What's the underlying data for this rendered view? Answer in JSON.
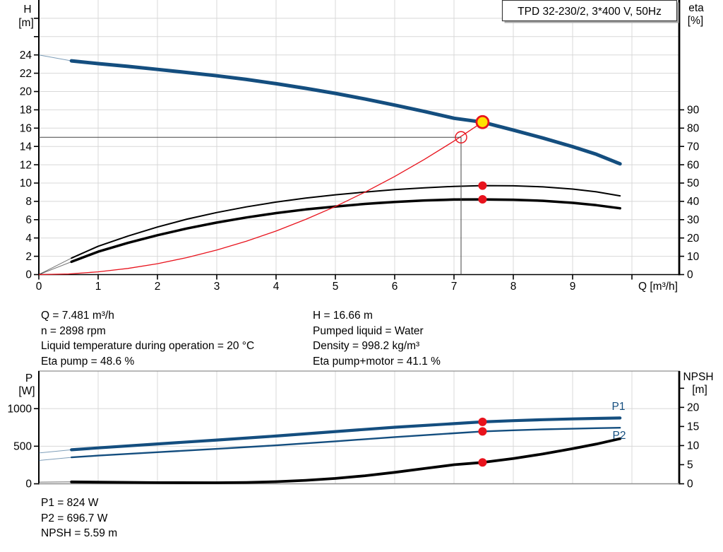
{
  "colors": {
    "curve_blue": "#144e7f",
    "red": "#e8131d",
    "yellow": "#ffe100",
    "grid": "#d8d8d8",
    "axis": "#000000",
    "frame_gray": "#8f8f8f",
    "crosshair": "#444444"
  },
  "info_top": {
    "left": [
      "Q = 7.481 m³/h",
      "n = 2898 rpm",
      "Liquid temperature during operation = 20 °C",
      "Eta pump = 48.6 %"
    ],
    "right": [
      "H = 16.66 m",
      "Pumped liquid = Water",
      "Density = 998.2 kg/m³",
      "Eta pump+motor = 41.1 %"
    ]
  },
  "info_bottom": [
    "P1 = 824 W",
    "P2 = 696.7 W",
    "NPSH = 5.59 m"
  ],
  "chart_data": [
    {
      "id": "qh-eta",
      "type": "line",
      "title": "TPD 32-230/2, 3*400 V, 50Hz",
      "x_axis": {
        "label": "Q [m³/h]",
        "min": 0,
        "max": 10.8,
        "ticks": [
          0,
          1,
          2,
          3,
          4,
          5,
          6,
          7,
          8,
          9,
          10
        ],
        "tick_labels": [
          "0",
          "1",
          "2",
          "3",
          "4",
          "5",
          "6",
          "7",
          "8",
          "9",
          ""
        ]
      },
      "left_axis": {
        "label": "H",
        "unit": "[m]",
        "min": 0,
        "max": 30,
        "ticks": [
          0,
          2,
          4,
          6,
          8,
          10,
          12,
          14,
          16,
          18,
          20,
          22,
          24,
          26,
          28
        ],
        "max_labeled": 24
      },
      "right_axis": {
        "label": "eta",
        "unit": "[%]",
        "min": 0,
        "max": 150,
        "ticks": [
          0,
          10,
          20,
          30,
          40,
          50,
          60,
          70,
          80,
          90
        ],
        "max_labeled": 90
      },
      "grid": true,
      "series": [
        {
          "name": "QH-curve",
          "axis": "left",
          "width": 5,
          "colorKey": "curve_blue",
          "thin_until": 0.55,
          "points": [
            [
              0,
              24
            ],
            [
              0.55,
              23.35
            ],
            [
              1,
              23.05
            ],
            [
              1.5,
              22.75
            ],
            [
              2,
              22.42
            ],
            [
              2.5,
              22.08
            ],
            [
              3,
              21.72
            ],
            [
              3.5,
              21.32
            ],
            [
              4,
              20.86
            ],
            [
              4.5,
              20.35
            ],
            [
              5,
              19.8
            ],
            [
              5.5,
              19.18
            ],
            [
              6,
              18.52
            ],
            [
              6.5,
              17.82
            ],
            [
              7,
              17.08
            ],
            [
              7.481,
              16.66
            ],
            [
              8,
              15.78
            ],
            [
              8.5,
              14.92
            ],
            [
              9,
              13.98
            ],
            [
              9.4,
              13.14
            ],
            [
              9.8,
              12.1
            ]
          ]
        },
        {
          "name": "eta-pump",
          "axis": "right",
          "width": 2,
          "colorKey": "axis",
          "thin_until": 0.55,
          "points": [
            [
              0,
              0
            ],
            [
              0.55,
              9
            ],
            [
              1,
              15.5
            ],
            [
              1.5,
              21
            ],
            [
              2,
              26
            ],
            [
              2.5,
              30.3
            ],
            [
              3,
              33.9
            ],
            [
              3.5,
              37
            ],
            [
              4,
              39.6
            ],
            [
              4.5,
              41.8
            ],
            [
              5,
              43.6
            ],
            [
              5.5,
              45.1
            ],
            [
              6,
              46.4
            ],
            [
              6.5,
              47.4
            ],
            [
              7,
              48.2
            ],
            [
              7.481,
              48.6
            ],
            [
              8,
              48.5
            ],
            [
              8.5,
              47.9
            ],
            [
              9,
              46.7
            ],
            [
              9.4,
              45.2
            ],
            [
              9.8,
              43
            ]
          ]
        },
        {
          "name": "eta-pump-motor",
          "axis": "right",
          "width": 3.5,
          "colorKey": "axis",
          "thin_until": 0.55,
          "points": [
            [
              0,
              0
            ],
            [
              0.55,
              7
            ],
            [
              1,
              12.5
            ],
            [
              1.5,
              17.3
            ],
            [
              2,
              21.5
            ],
            [
              2.5,
              25.2
            ],
            [
              3,
              28.4
            ],
            [
              3.5,
              31.2
            ],
            [
              4,
              33.6
            ],
            [
              4.5,
              35.6
            ],
            [
              5,
              37.2
            ],
            [
              5.5,
              38.6
            ],
            [
              6,
              39.7
            ],
            [
              6.5,
              40.5
            ],
            [
              7,
              41
            ],
            [
              7.481,
              41.1
            ],
            [
              8,
              40.9
            ],
            [
              8.5,
              40.3
            ],
            [
              9,
              39.2
            ],
            [
              9.4,
              37.9
            ],
            [
              9.8,
              36.2
            ]
          ]
        },
        {
          "name": "system-curve",
          "axis": "left",
          "width": 1.3,
          "colorKey": "red",
          "thin_until": 0,
          "points": [
            [
              0,
              0
            ],
            [
              0.5,
              0.07
            ],
            [
              1,
              0.3
            ],
            [
              1.5,
              0.67
            ],
            [
              2,
              1.19
            ],
            [
              2.5,
              1.86
            ],
            [
              3,
              2.68
            ],
            [
              3.5,
              3.65
            ],
            [
              4,
              4.76
            ],
            [
              4.5,
              6.03
            ],
            [
              5,
              7.44
            ],
            [
              5.5,
              9.01
            ],
            [
              6,
              10.72
            ],
            [
              6.5,
              12.58
            ],
            [
              7,
              14.59
            ],
            [
              7.481,
              16.66
            ]
          ]
        }
      ],
      "markers": [
        {
          "kind": "crosshair",
          "x": 7.119,
          "value": 15,
          "axis": "left"
        },
        {
          "kind": "open-circle",
          "x": 7.119,
          "value": 15,
          "axis": "left",
          "r": 8
        },
        {
          "kind": "dot",
          "x": 7.481,
          "value": 48.6,
          "axis": "right",
          "r": 6
        },
        {
          "kind": "dot",
          "x": 7.481,
          "value": 41.1,
          "axis": "right",
          "r": 6
        },
        {
          "kind": "duty-point",
          "x": 7.481,
          "value": 16.66,
          "axis": "left",
          "r": 8.5
        }
      ]
    },
    {
      "id": "power-npsh",
      "type": "line",
      "x_axis": {
        "label": "",
        "min": 0,
        "max": 10.8,
        "ticks": [
          0,
          1,
          2,
          3,
          4,
          5,
          6,
          7,
          8,
          9,
          10
        ],
        "tick_labels": [
          "",
          "",
          "",
          "",
          "",
          "",
          "",
          "",
          "",
          "",
          ""
        ]
      },
      "left_axis": {
        "label": "P",
        "unit": "[W]",
        "min": 0,
        "max": 1500,
        "ticks": [
          0,
          500,
          1000
        ],
        "max_labeled": 1000
      },
      "right_axis": {
        "label": "NPSH",
        "unit": "[m]",
        "min": 0,
        "max": 29.5,
        "ticks": [
          0,
          5,
          10,
          15,
          20,
          25
        ],
        "max_labeled": 20
      },
      "grid": true,
      "series": [
        {
          "name": "P1-curve",
          "label": "P1",
          "axis": "left",
          "width": 4.2,
          "colorKey": "curve_blue",
          "thin_until": 0.55,
          "points": [
            [
              0,
              410
            ],
            [
              0.55,
              452
            ],
            [
              1,
              478
            ],
            [
              2,
              530
            ],
            [
              3,
              582
            ],
            [
              4,
              636
            ],
            [
              5,
              695
            ],
            [
              6,
              752
            ],
            [
              7,
              800
            ],
            [
              7.481,
              824
            ],
            [
              8,
              840
            ],
            [
              8.5,
              853
            ],
            [
              9,
              863
            ],
            [
              9.4,
              870
            ],
            [
              9.8,
              876
            ]
          ]
        },
        {
          "name": "P2-curve",
          "label": "P2",
          "axis": "left",
          "width": 2.4,
          "colorKey": "curve_blue",
          "thin_until": 0.55,
          "points": [
            [
              0,
              310
            ],
            [
              0.55,
              352
            ],
            [
              1,
              375
            ],
            [
              2,
              420
            ],
            [
              3,
              465
            ],
            [
              4,
              512
            ],
            [
              5,
              565
            ],
            [
              6,
              622
            ],
            [
              7,
              672
            ],
            [
              7.481,
              696.7
            ],
            [
              8,
              712
            ],
            [
              8.5,
              724
            ],
            [
              9,
              733
            ],
            [
              9.4,
              740
            ],
            [
              9.8,
              746
            ]
          ]
        },
        {
          "name": "NPSH-curve",
          "axis": "right",
          "width": 3.8,
          "colorKey": "axis",
          "thin_until": 0.55,
          "points": [
            [
              0,
              0.45
            ],
            [
              0.55,
              0.5
            ],
            [
              1,
              0.42
            ],
            [
              2,
              0.3
            ],
            [
              3,
              0.28
            ],
            [
              3.5,
              0.35
            ],
            [
              4,
              0.55
            ],
            [
              4.5,
              0.9
            ],
            [
              5,
              1.4
            ],
            [
              5.5,
              2.1
            ],
            [
              6,
              3
            ],
            [
              6.5,
              4
            ],
            [
              7,
              5
            ],
            [
              7.481,
              5.59
            ],
            [
              8,
              6.6
            ],
            [
              8.5,
              7.8
            ],
            [
              9,
              9.2
            ],
            [
              9.4,
              10.4
            ],
            [
              9.8,
              11.8
            ]
          ]
        }
      ],
      "markers": [
        {
          "kind": "dot",
          "x": 7.481,
          "value": 824,
          "axis": "left",
          "r": 6
        },
        {
          "kind": "dot",
          "x": 7.481,
          "value": 696.7,
          "axis": "left",
          "r": 6
        },
        {
          "kind": "dot",
          "x": 7.481,
          "value": 5.59,
          "axis": "right",
          "r": 6
        }
      ]
    }
  ]
}
